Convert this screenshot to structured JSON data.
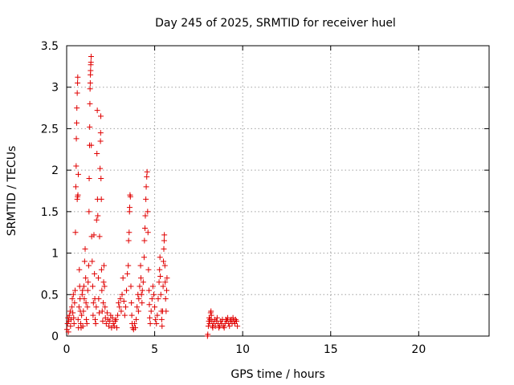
{
  "chart_data": {
    "type": "scatter",
    "title": "Day 245 of 2025, SRMTID for receiver huel",
    "xlabel": "GPS time / hours",
    "ylabel": "SRMTID / TECUs",
    "xlim": [
      0,
      24
    ],
    "ylim": [
      0,
      3.5
    ],
    "xticks": [
      0,
      5,
      10,
      15,
      20
    ],
    "yticks": [
      0,
      0.5,
      1,
      1.5,
      2,
      2.5,
      3,
      3.5
    ],
    "x_tick_labels": [
      "0",
      "5",
      "10",
      "15",
      "20"
    ],
    "y_tick_labels": [
      "0",
      "0.5",
      "1",
      "1.5",
      "2",
      "2.5",
      "3",
      "3.5"
    ],
    "grid": true,
    "marker": "+",
    "color": "#e00000",
    "series": [
      {
        "name": "SRMTID",
        "points": [
          [
            0.02,
            0.08
          ],
          [
            0.05,
            0.15
          ],
          [
            0.08,
            0.22
          ],
          [
            0.1,
            0.05
          ],
          [
            0.12,
            0.18
          ],
          [
            0.15,
            0.25
          ],
          [
            0.2,
            0.3
          ],
          [
            0.22,
            0.12
          ],
          [
            0.25,
            0.2
          ],
          [
            0.3,
            0.35
          ],
          [
            0.32,
            0.45
          ],
          [
            0.35,
            0.28
          ],
          [
            0.38,
            0.5
          ],
          [
            0.4,
            0.22
          ],
          [
            0.42,
            0.15
          ],
          [
            0.45,
            0.4
          ],
          [
            0.48,
            0.55
          ],
          [
            0.5,
            1.25
          ],
          [
            0.52,
            1.8
          ],
          [
            0.54,
            2.05
          ],
          [
            0.55,
            2.38
          ],
          [
            0.57,
            2.57
          ],
          [
            0.58,
            2.75
          ],
          [
            0.6,
            2.93
          ],
          [
            0.62,
            3.05
          ],
          [
            0.63,
            3.12
          ],
          [
            0.6,
            1.65
          ],
          [
            0.62,
            1.68
          ],
          [
            0.64,
            1.7
          ],
          [
            0.66,
            1.95
          ],
          [
            0.65,
            0.2
          ],
          [
            0.67,
            0.1
          ],
          [
            0.7,
            0.35
          ],
          [
            0.72,
            0.8
          ],
          [
            0.74,
            0.6
          ],
          [
            0.76,
            0.45
          ],
          [
            0.78,
            0.3
          ],
          [
            0.8,
            0.15
          ],
          [
            0.82,
            0.1
          ],
          [
            0.85,
            0.25
          ],
          [
            0.88,
            0.5
          ],
          [
            0.9,
            0.55
          ],
          [
            0.92,
            0.12
          ],
          [
            0.95,
            0.3
          ],
          [
            0.98,
            0.6
          ],
          [
            1.0,
            0.45
          ],
          [
            1.02,
            0.9
          ],
          [
            1.05,
            1.05
          ],
          [
            1.08,
            0.7
          ],
          [
            1.1,
            0.4
          ],
          [
            1.12,
            0.2
          ],
          [
            1.15,
            0.15
          ],
          [
            1.18,
            0.35
          ],
          [
            1.2,
            0.55
          ],
          [
            1.22,
            0.65
          ],
          [
            1.25,
            0.85
          ],
          [
            1.27,
            1.5
          ],
          [
            1.28,
            1.9
          ],
          [
            1.3,
            2.3
          ],
          [
            1.31,
            2.52
          ],
          [
            1.32,
            2.8
          ],
          [
            1.33,
            2.98
          ],
          [
            1.34,
            3.05
          ],
          [
            1.35,
            3.15
          ],
          [
            1.36,
            3.2
          ],
          [
            1.37,
            3.27
          ],
          [
            1.38,
            3.3
          ],
          [
            1.39,
            3.37
          ],
          [
            1.4,
            2.3
          ],
          [
            1.42,
            1.2
          ],
          [
            1.45,
            0.9
          ],
          [
            1.48,
            0.6
          ],
          [
            1.5,
            0.25
          ],
          [
            1.52,
            0.4
          ],
          [
            1.55,
            1.22
          ],
          [
            1.58,
            0.75
          ],
          [
            1.6,
            0.45
          ],
          [
            1.62,
            0.2
          ],
          [
            1.65,
            0.15
          ],
          [
            1.68,
            0.35
          ],
          [
            1.7,
            1.4
          ],
          [
            1.72,
            2.2
          ],
          [
            1.74,
            2.72
          ],
          [
            1.75,
            1.65
          ],
          [
            1.77,
            1.45
          ],
          [
            1.8,
            0.7
          ],
          [
            1.82,
            0.45
          ],
          [
            1.85,
            0.28
          ],
          [
            1.87,
            1.2
          ],
          [
            1.9,
            2.02
          ],
          [
            1.92,
            2.35
          ],
          [
            1.93,
            2.45
          ],
          [
            1.94,
            2.65
          ],
          [
            1.95,
            1.9
          ],
          [
            1.97,
            1.65
          ],
          [
            1.98,
            0.8
          ],
          [
            2.0,
            0.55
          ],
          [
            2.02,
            0.3
          ],
          [
            2.05,
            0.18
          ],
          [
            2.08,
            0.4
          ],
          [
            2.1,
            0.65
          ],
          [
            2.12,
            0.85
          ],
          [
            2.15,
            0.6
          ],
          [
            2.18,
            0.35
          ],
          [
            2.2,
            0.22
          ],
          [
            2.25,
            0.15
          ],
          [
            2.3,
            0.28
          ],
          [
            2.35,
            0.2
          ],
          [
            2.4,
            0.12
          ],
          [
            2.45,
            0.18
          ],
          [
            2.5,
            0.25
          ],
          [
            2.55,
            0.1
          ],
          [
            2.6,
            0.22
          ],
          [
            2.65,
            0.15
          ],
          [
            2.7,
            0.12
          ],
          [
            2.75,
            0.18
          ],
          [
            2.8,
            0.2
          ],
          [
            2.85,
            0.1
          ],
          [
            2.9,
            0.25
          ],
          [
            2.95,
            0.4
          ],
          [
            3.0,
            0.35
          ],
          [
            3.05,
            0.45
          ],
          [
            3.1,
            0.3
          ],
          [
            3.15,
            0.5
          ],
          [
            3.2,
            0.7
          ],
          [
            3.25,
            0.42
          ],
          [
            3.3,
            0.25
          ],
          [
            3.35,
            0.35
          ],
          [
            3.4,
            0.55
          ],
          [
            3.45,
            0.75
          ],
          [
            3.5,
            0.85
          ],
          [
            3.52,
            1.15
          ],
          [
            3.55,
            1.25
          ],
          [
            3.57,
            1.5
          ],
          [
            3.58,
            1.55
          ],
          [
            3.6,
            1.7
          ],
          [
            3.62,
            1.68
          ],
          [
            3.65,
            0.6
          ],
          [
            3.68,
            0.4
          ],
          [
            3.7,
            0.25
          ],
          [
            3.72,
            0.15
          ],
          [
            3.75,
            0.1
          ],
          [
            3.8,
            0.08
          ],
          [
            3.85,
            0.15
          ],
          [
            3.9,
            0.1
          ],
          [
            3.95,
            0.2
          ],
          [
            4.0,
            0.35
          ],
          [
            4.05,
            0.5
          ],
          [
            4.08,
            0.3
          ],
          [
            4.1,
            0.45
          ],
          [
            4.15,
            0.6
          ],
          [
            4.2,
            0.85
          ],
          [
            4.22,
            0.7
          ],
          [
            4.25,
            0.5
          ],
          [
            4.28,
            0.4
          ],
          [
            4.3,
            0.55
          ],
          [
            4.35,
            0.65
          ],
          [
            4.4,
            0.95
          ],
          [
            4.42,
            1.15
          ],
          [
            4.45,
            1.3
          ],
          [
            4.47,
            1.45
          ],
          [
            4.5,
            1.65
          ],
          [
            4.52,
            1.8
          ],
          [
            4.55,
            1.92
          ],
          [
            4.57,
            1.98
          ],
          [
            4.6,
            1.5
          ],
          [
            4.62,
            1.25
          ],
          [
            4.65,
            0.8
          ],
          [
            4.68,
            0.55
          ],
          [
            4.7,
            0.38
          ],
          [
            4.72,
            0.22
          ],
          [
            4.75,
            0.15
          ],
          [
            4.8,
            0.3
          ],
          [
            4.85,
            0.45
          ],
          [
            4.9,
            0.6
          ],
          [
            4.95,
            0.5
          ],
          [
            5.0,
            0.35
          ],
          [
            5.05,
            0.2
          ],
          [
            5.1,
            0.15
          ],
          [
            5.15,
            0.25
          ],
          [
            5.2,
            0.45
          ],
          [
            5.25,
            0.65
          ],
          [
            5.28,
            0.8
          ],
          [
            5.3,
            0.95
          ],
          [
            5.32,
            0.72
          ],
          [
            5.35,
            0.5
          ],
          [
            5.38,
            0.3
          ],
          [
            5.4,
            0.2
          ],
          [
            5.42,
            0.12
          ],
          [
            5.45,
            0.3
          ],
          [
            5.48,
            0.6
          ],
          [
            5.5,
            0.9
          ],
          [
            5.52,
            1.05
          ],
          [
            5.54,
            1.15
          ],
          [
            5.55,
            1.22
          ],
          [
            5.58,
            0.85
          ],
          [
            5.6,
            0.65
          ],
          [
            5.62,
            0.45
          ],
          [
            5.65,
            0.3
          ],
          [
            5.68,
            0.55
          ],
          [
            5.7,
            0.7
          ],
          [
            8.0,
            0.0
          ],
          [
            8.02,
            0.02
          ],
          [
            8.05,
            0.12
          ],
          [
            8.08,
            0.18
          ],
          [
            8.1,
            0.22
          ],
          [
            8.12,
            0.15
          ],
          [
            8.15,
            0.2
          ],
          [
            8.18,
            0.28
          ],
          [
            8.2,
            0.3
          ],
          [
            8.22,
            0.25
          ],
          [
            8.25,
            0.18
          ],
          [
            8.28,
            0.12
          ],
          [
            8.3,
            0.1
          ],
          [
            8.35,
            0.15
          ],
          [
            8.4,
            0.2
          ],
          [
            8.45,
            0.12
          ],
          [
            8.5,
            0.18
          ],
          [
            8.55,
            0.22
          ],
          [
            8.6,
            0.15
          ],
          [
            8.65,
            0.1
          ],
          [
            8.7,
            0.12
          ],
          [
            8.75,
            0.18
          ],
          [
            8.8,
            0.15
          ],
          [
            8.85,
            0.2
          ],
          [
            8.9,
            0.12
          ],
          [
            8.95,
            0.1
          ],
          [
            9.0,
            0.15
          ],
          [
            9.05,
            0.2
          ],
          [
            9.1,
            0.18
          ],
          [
            9.15,
            0.22
          ],
          [
            9.2,
            0.15
          ],
          [
            9.25,
            0.12
          ],
          [
            9.3,
            0.18
          ],
          [
            9.35,
            0.2
          ],
          [
            9.4,
            0.15
          ],
          [
            9.45,
            0.22
          ],
          [
            9.5,
            0.18
          ],
          [
            9.55,
            0.15
          ],
          [
            9.6,
            0.2
          ],
          [
            9.65,
            0.18
          ],
          [
            9.7,
            0.12
          ]
        ]
      }
    ]
  }
}
